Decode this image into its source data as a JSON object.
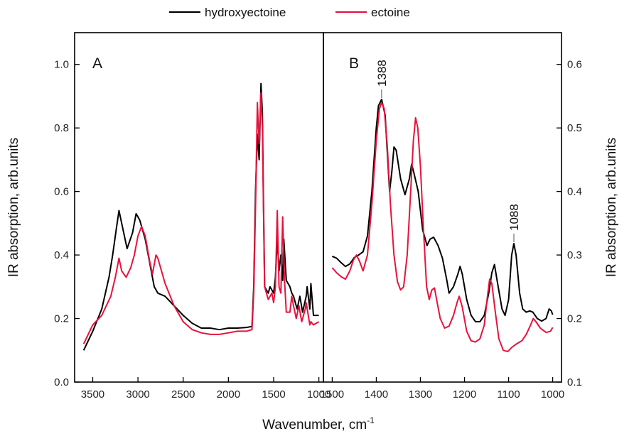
{
  "chart_data": [
    {
      "id": "A",
      "type": "line",
      "panel_label": "A",
      "xlabel": "Wavenumber, cm",
      "xlabel_sup": "-1",
      "ylabel": "IR absorption, arb.units",
      "xlim": [
        3700,
        950
      ],
      "ylim": [
        0,
        1.1
      ],
      "xticks": [
        3500,
        3000,
        2500,
        2000,
        1500,
        1000
      ],
      "xtick_labels": [
        "3500",
        "3000",
        "2500",
        "2000",
        "1500",
        "1000"
      ],
      "yticks": [
        0.0,
        0.2,
        0.4,
        0.6,
        0.8,
        1.0
      ],
      "ytick_labels": [
        "0.0",
        "0.2",
        "0.4",
        "0.6",
        "0.8",
        "1.0"
      ],
      "series": [
        {
          "name": "hydroxyectoine",
          "color": "#000000",
          "points": [
            [
              3600,
              0.1
            ],
            [
              3500,
              0.16
            ],
            [
              3400,
              0.23
            ],
            [
              3320,
              0.33
            ],
            [
              3280,
              0.4
            ],
            [
              3240,
              0.48
            ],
            [
              3210,
              0.54
            ],
            [
              3180,
              0.5
            ],
            [
              3120,
              0.42
            ],
            [
              3060,
              0.47
            ],
            [
              3020,
              0.53
            ],
            [
              2980,
              0.51
            ],
            [
              2920,
              0.45
            ],
            [
              2860,
              0.36
            ],
            [
              2820,
              0.3
            ],
            [
              2780,
              0.28
            ],
            [
              2700,
              0.27
            ],
            [
              2600,
              0.24
            ],
            [
              2500,
              0.21
            ],
            [
              2400,
              0.185
            ],
            [
              2300,
              0.17
            ],
            [
              2200,
              0.17
            ],
            [
              2100,
              0.165
            ],
            [
              2000,
              0.17
            ],
            [
              1900,
              0.17
            ],
            [
              1800,
              0.172
            ],
            [
              1740,
              0.175
            ],
            [
              1720,
              0.3
            ],
            [
              1700,
              0.6
            ],
            [
              1680,
              0.78
            ],
            [
              1660,
              0.7
            ],
            [
              1640,
              0.94
            ],
            [
              1625,
              0.85
            ],
            [
              1600,
              0.3
            ],
            [
              1560,
              0.28
            ],
            [
              1540,
              0.3
            ],
            [
              1500,
              0.28
            ],
            [
              1480,
              0.33
            ],
            [
              1460,
              0.45
            ],
            [
              1440,
              0.35
            ],
            [
              1420,
              0.4
            ],
            [
              1400,
              0.32
            ],
            [
              1388,
              0.45
            ],
            [
              1360,
              0.32
            ],
            [
              1320,
              0.3
            ],
            [
              1300,
              0.28
            ],
            [
              1280,
              0.27
            ],
            [
              1260,
              0.25
            ],
            [
              1240,
              0.23
            ],
            [
              1210,
              0.27
            ],
            [
              1180,
              0.22
            ],
            [
              1140,
              0.27
            ],
            [
              1130,
              0.3
            ],
            [
              1100,
              0.23
            ],
            [
              1088,
              0.31
            ],
            [
              1060,
              0.21
            ],
            [
              1000,
              0.21
            ]
          ]
        },
        {
          "name": "ectoine",
          "color": "#e8123c",
          "points": [
            [
              3600,
              0.12
            ],
            [
              3500,
              0.18
            ],
            [
              3400,
              0.21
            ],
            [
              3300,
              0.27
            ],
            [
              3250,
              0.33
            ],
            [
              3210,
              0.39
            ],
            [
              3180,
              0.35
            ],
            [
              3130,
              0.33
            ],
            [
              3080,
              0.36
            ],
            [
              3040,
              0.4
            ],
            [
              3000,
              0.46
            ],
            [
              2960,
              0.49
            ],
            [
              2920,
              0.46
            ],
            [
              2870,
              0.38
            ],
            [
              2840,
              0.34
            ],
            [
              2800,
              0.4
            ],
            [
              2780,
              0.39
            ],
            [
              2700,
              0.31
            ],
            [
              2600,
              0.24
            ],
            [
              2500,
              0.19
            ],
            [
              2400,
              0.165
            ],
            [
              2300,
              0.155
            ],
            [
              2200,
              0.15
            ],
            [
              2100,
              0.15
            ],
            [
              2000,
              0.155
            ],
            [
              1900,
              0.16
            ],
            [
              1800,
              0.16
            ],
            [
              1740,
              0.165
            ],
            [
              1720,
              0.28
            ],
            [
              1700,
              0.55
            ],
            [
              1680,
              0.88
            ],
            [
              1660,
              0.75
            ],
            [
              1640,
              0.91
            ],
            [
              1625,
              0.8
            ],
            [
              1600,
              0.3
            ],
            [
              1560,
              0.26
            ],
            [
              1520,
              0.28
            ],
            [
              1500,
              0.25
            ],
            [
              1480,
              0.3
            ],
            [
              1460,
              0.54
            ],
            [
              1440,
              0.3
            ],
            [
              1420,
              0.28
            ],
            [
              1400,
              0.52
            ],
            [
              1380,
              0.32
            ],
            [
              1360,
              0.22
            ],
            [
              1320,
              0.22
            ],
            [
              1300,
              0.27
            ],
            [
              1280,
              0.24
            ],
            [
              1250,
              0.2
            ],
            [
              1220,
              0.24
            ],
            [
              1190,
              0.19
            ],
            [
              1150,
              0.23
            ],
            [
              1140,
              0.25
            ],
            [
              1100,
              0.18
            ],
            [
              1088,
              0.19
            ],
            [
              1060,
              0.18
            ],
            [
              1000,
              0.19
            ]
          ]
        }
      ]
    },
    {
      "id": "B",
      "type": "line",
      "panel_label": "B",
      "ylabel": "IR absorption, arb.units",
      "xlim": [
        1520,
        980
      ],
      "ylim": [
        0.1,
        0.65
      ],
      "xticks": [
        1500,
        1400,
        1300,
        1200,
        1100,
        1000
      ],
      "xtick_labels": [
        "1500",
        "1400",
        "1300",
        "1200",
        "1100",
        "1000"
      ],
      "yticks": [
        0.1,
        0.2,
        0.3,
        0.4,
        0.5,
        0.6
      ],
      "ytick_labels": [
        "0.1",
        "0.2",
        "0.3",
        "0.4",
        "0.5",
        "0.6"
      ],
      "annotations": [
        {
          "text": "1388",
          "x": 1388,
          "y": 0.545
        },
        {
          "text": "1088",
          "x": 1088,
          "y": 0.318
        }
      ],
      "series": [
        {
          "name": "hydroxyectoine",
          "color": "#000000",
          "points": [
            [
              1500,
              0.298
            ],
            [
              1490,
              0.295
            ],
            [
              1480,
              0.288
            ],
            [
              1470,
              0.282
            ],
            [
              1460,
              0.286
            ],
            [
              1450,
              0.296
            ],
            [
              1440,
              0.3
            ],
            [
              1430,
              0.305
            ],
            [
              1420,
              0.33
            ],
            [
              1410,
              0.4
            ],
            [
              1400,
              0.5
            ],
            [
              1395,
              0.535
            ],
            [
              1388,
              0.545
            ],
            [
              1380,
              0.52
            ],
            [
              1375,
              0.46
            ],
            [
              1370,
              0.4
            ],
            [
              1365,
              0.43
            ],
            [
              1360,
              0.47
            ],
            [
              1355,
              0.465
            ],
            [
              1345,
              0.42
            ],
            [
              1335,
              0.395
            ],
            [
              1325,
              0.42
            ],
            [
              1320,
              0.443
            ],
            [
              1315,
              0.43
            ],
            [
              1305,
              0.4
            ],
            [
              1295,
              0.34
            ],
            [
              1285,
              0.315
            ],
            [
              1278,
              0.325
            ],
            [
              1270,
              0.328
            ],
            [
              1260,
              0.315
            ],
            [
              1250,
              0.295
            ],
            [
              1240,
              0.26
            ],
            [
              1235,
              0.24
            ],
            [
              1225,
              0.25
            ],
            [
              1215,
              0.27
            ],
            [
              1210,
              0.282
            ],
            [
              1205,
              0.27
            ],
            [
              1195,
              0.23
            ],
            [
              1185,
              0.205
            ],
            [
              1175,
              0.195
            ],
            [
              1165,
              0.195
            ],
            [
              1155,
              0.205
            ],
            [
              1145,
              0.24
            ],
            [
              1138,
              0.272
            ],
            [
              1132,
              0.285
            ],
            [
              1126,
              0.26
            ],
            [
              1115,
              0.215
            ],
            [
              1108,
              0.205
            ],
            [
              1100,
              0.23
            ],
            [
              1093,
              0.3
            ],
            [
              1088,
              0.318
            ],
            [
              1083,
              0.3
            ],
            [
              1075,
              0.24
            ],
            [
              1068,
              0.215
            ],
            [
              1060,
              0.21
            ],
            [
              1052,
              0.212
            ],
            [
              1045,
              0.21
            ],
            [
              1035,
              0.2
            ],
            [
              1025,
              0.196
            ],
            [
              1015,
              0.2
            ],
            [
              1008,
              0.215
            ],
            [
              1003,
              0.212
            ],
            [
              1000,
              0.206
            ]
          ]
        },
        {
          "name": "ectoine",
          "color": "#e8123c",
          "points": [
            [
              1500,
              0.28
            ],
            [
              1490,
              0.272
            ],
            [
              1480,
              0.266
            ],
            [
              1470,
              0.262
            ],
            [
              1460,
              0.275
            ],
            [
              1452,
              0.292
            ],
            [
              1445,
              0.3
            ],
            [
              1438,
              0.29
            ],
            [
              1430,
              0.275
            ],
            [
              1420,
              0.3
            ],
            [
              1410,
              0.38
            ],
            [
              1400,
              0.48
            ],
            [
              1393,
              0.53
            ],
            [
              1388,
              0.54
            ],
            [
              1382,
              0.53
            ],
            [
              1375,
              0.47
            ],
            [
              1368,
              0.38
            ],
            [
              1360,
              0.3
            ],
            [
              1352,
              0.258
            ],
            [
              1345,
              0.245
            ],
            [
              1338,
              0.25
            ],
            [
              1330,
              0.3
            ],
            [
              1322,
              0.4
            ],
            [
              1316,
              0.48
            ],
            [
              1311,
              0.516
            ],
            [
              1306,
              0.5
            ],
            [
              1300,
              0.44
            ],
            [
              1293,
              0.34
            ],
            [
              1286,
              0.25
            ],
            [
              1280,
              0.23
            ],
            [
              1274,
              0.245
            ],
            [
              1268,
              0.248
            ],
            [
              1262,
              0.225
            ],
            [
              1255,
              0.2
            ],
            [
              1245,
              0.185
            ],
            [
              1235,
              0.188
            ],
            [
              1225,
              0.205
            ],
            [
              1217,
              0.225
            ],
            [
              1212,
              0.235
            ],
            [
              1205,
              0.218
            ],
            [
              1195,
              0.18
            ],
            [
              1185,
              0.165
            ],
            [
              1175,
              0.163
            ],
            [
              1165,
              0.168
            ],
            [
              1155,
              0.19
            ],
            [
              1148,
              0.235
            ],
            [
              1143,
              0.262
            ],
            [
              1138,
              0.255
            ],
            [
              1130,
              0.21
            ],
            [
              1122,
              0.168
            ],
            [
              1112,
              0.15
            ],
            [
              1102,
              0.148
            ],
            [
              1092,
              0.155
            ],
            [
              1082,
              0.16
            ],
            [
              1070,
              0.165
            ],
            [
              1060,
              0.175
            ],
            [
              1050,
              0.19
            ],
            [
              1044,
              0.2
            ],
            [
              1038,
              0.195
            ],
            [
              1028,
              0.185
            ],
            [
              1015,
              0.178
            ],
            [
              1005,
              0.18
            ],
            [
              1000,
              0.186
            ]
          ]
        }
      ]
    }
  ]
}
